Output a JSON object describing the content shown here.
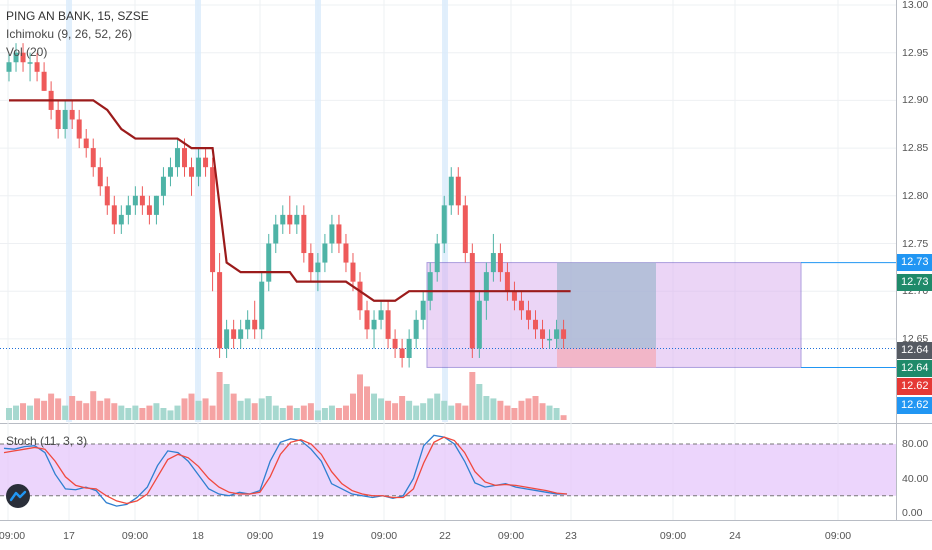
{
  "legend": {
    "title": "PING AN BANK, 15, SZSE",
    "ichimoku": "Ichimoku (9, 26, 52, 26)",
    "volume": "Vol (20)",
    "stoch": "Stoch (11, 3, 3)"
  },
  "colors": {
    "up": "#4eb3a6",
    "down": "#ee5a5a",
    "ichimoku_line": "#9b1b1b",
    "stoch_k": "#2f7fd0",
    "stoch_d": "#f0493e",
    "stoch_band": "#e5c7fb",
    "long_position_profit": "#dbb3f0",
    "long_position_stop": "#f3b0bf",
    "current_price_tag": "#555a62",
    "green_tag": "#1f8a6a",
    "red_tag": "#e53935",
    "blue_tag": "#2196f3"
  },
  "price_axis": {
    "ticks": [
      "13.00",
      "12.95",
      "12.90",
      "12.85",
      "12.80",
      "12.75",
      "12.70",
      "12.65"
    ],
    "tags": [
      "12.73",
      "12.73",
      "12.64",
      "12.64",
      "12.62",
      "12.62"
    ]
  },
  "stoch_axis": {
    "ticks": [
      "80.00",
      "40.00",
      "0.00"
    ]
  },
  "time_axis": {
    "labels": [
      "09:00",
      "17",
      "09:00",
      "18",
      "09:00",
      "19",
      "09:00",
      "22",
      "09:00",
      "23",
      "09:00",
      "24",
      "09:00"
    ]
  },
  "chart_data": [
    {
      "type": "candlestick",
      "title": "PING AN BANK, 15, SZSE",
      "ylim": [
        12.61,
        13.0
      ],
      "grid": true,
      "ohlc": [
        [
          12.93,
          12.95,
          12.92,
          12.94
        ],
        [
          12.94,
          12.96,
          12.93,
          12.95
        ],
        [
          12.95,
          12.96,
          12.93,
          12.94
        ],
        [
          12.94,
          12.95,
          12.92,
          12.94
        ],
        [
          12.94,
          12.95,
          12.92,
          12.93
        ],
        [
          12.93,
          12.94,
          12.91,
          12.91
        ],
        [
          12.91,
          12.92,
          12.88,
          12.89
        ],
        [
          12.89,
          12.9,
          12.86,
          12.87
        ],
        [
          12.87,
          12.9,
          12.86,
          12.89
        ],
        [
          12.89,
          12.9,
          12.87,
          12.88
        ],
        [
          12.88,
          12.89,
          12.85,
          12.86
        ],
        [
          12.86,
          12.87,
          12.84,
          12.85
        ],
        [
          12.85,
          12.86,
          12.82,
          12.83
        ],
        [
          12.83,
          12.84,
          12.8,
          12.81
        ],
        [
          12.81,
          12.82,
          12.78,
          12.79
        ],
        [
          12.79,
          12.8,
          12.76,
          12.77
        ],
        [
          12.77,
          12.79,
          12.76,
          12.78
        ],
        [
          12.78,
          12.8,
          12.77,
          12.79
        ],
        [
          12.79,
          12.81,
          12.78,
          12.8
        ],
        [
          12.8,
          12.81,
          12.78,
          12.79
        ],
        [
          12.79,
          12.8,
          12.77,
          12.78
        ],
        [
          12.78,
          12.8,
          12.77,
          12.8
        ],
        [
          12.8,
          12.83,
          12.79,
          12.82
        ],
        [
          12.82,
          12.84,
          12.81,
          12.83
        ],
        [
          12.83,
          12.86,
          12.82,
          12.85
        ],
        [
          12.85,
          12.86,
          12.82,
          12.83
        ],
        [
          12.83,
          12.84,
          12.8,
          12.82
        ],
        [
          12.82,
          12.85,
          12.81,
          12.84
        ],
        [
          12.84,
          12.85,
          12.82,
          12.83
        ],
        [
          12.83,
          12.84,
          12.7,
          12.72
        ],
        [
          12.72,
          12.74,
          12.63,
          12.64
        ],
        [
          12.64,
          12.67,
          12.63,
          12.66
        ],
        [
          12.66,
          12.67,
          12.64,
          12.65
        ],
        [
          12.65,
          12.67,
          12.64,
          12.66
        ],
        [
          12.66,
          12.68,
          12.65,
          12.67
        ],
        [
          12.67,
          12.69,
          12.65,
          12.66
        ],
        [
          12.66,
          12.72,
          12.65,
          12.71
        ],
        [
          12.71,
          12.76,
          12.7,
          12.75
        ],
        [
          12.75,
          12.78,
          12.74,
          12.77
        ],
        [
          12.77,
          12.79,
          12.76,
          12.78
        ],
        [
          12.78,
          12.8,
          12.76,
          12.77
        ],
        [
          12.77,
          12.79,
          12.76,
          12.78
        ],
        [
          12.78,
          12.79,
          12.73,
          12.74
        ],
        [
          12.74,
          12.75,
          12.71,
          12.72
        ],
        [
          12.72,
          12.74,
          12.7,
          12.73
        ],
        [
          12.73,
          12.76,
          12.72,
          12.75
        ],
        [
          12.75,
          12.78,
          12.74,
          12.77
        ],
        [
          12.77,
          12.78,
          12.74,
          12.75
        ],
        [
          12.75,
          12.76,
          12.72,
          12.73
        ],
        [
          12.73,
          12.74,
          12.7,
          12.71
        ],
        [
          12.71,
          12.72,
          12.67,
          12.68
        ],
        [
          12.68,
          12.69,
          12.65,
          12.66
        ],
        [
          12.66,
          12.68,
          12.64,
          12.67
        ],
        [
          12.67,
          12.69,
          12.66,
          12.68
        ],
        [
          12.68,
          12.69,
          12.64,
          12.65
        ],
        [
          12.65,
          12.66,
          12.63,
          12.64
        ],
        [
          12.64,
          12.65,
          12.62,
          12.63
        ],
        [
          12.63,
          12.66,
          12.62,
          12.65
        ],
        [
          12.65,
          12.68,
          12.64,
          12.67
        ],
        [
          12.67,
          12.7,
          12.66,
          12.69
        ],
        [
          12.69,
          12.73,
          12.68,
          12.72
        ],
        [
          12.72,
          12.76,
          12.71,
          12.75
        ],
        [
          12.75,
          12.8,
          12.74,
          12.79
        ],
        [
          12.79,
          12.83,
          12.78,
          12.82
        ],
        [
          12.82,
          12.83,
          12.78,
          12.79
        ],
        [
          12.79,
          12.8,
          12.73,
          12.74
        ],
        [
          12.74,
          12.75,
          12.63,
          12.64
        ],
        [
          12.64,
          12.7,
          12.63,
          12.69
        ],
        [
          12.69,
          12.73,
          12.67,
          12.72
        ],
        [
          12.72,
          12.76,
          12.71,
          12.74
        ],
        [
          12.74,
          12.75,
          12.71,
          12.72
        ],
        [
          12.72,
          12.73,
          12.69,
          12.7
        ],
        [
          12.7,
          12.71,
          12.68,
          12.69
        ],
        [
          12.69,
          12.7,
          12.67,
          12.68
        ],
        [
          12.68,
          12.69,
          12.66,
          12.67
        ],
        [
          12.67,
          12.68,
          12.65,
          12.66
        ],
        [
          12.66,
          12.67,
          12.64,
          12.65
        ],
        [
          12.65,
          12.66,
          12.64,
          12.65
        ],
        [
          12.65,
          12.67,
          12.64,
          12.66
        ],
        [
          12.66,
          12.67,
          12.64,
          12.65
        ]
      ],
      "volume_relative": [
        0.25,
        0.3,
        0.35,
        0.3,
        0.45,
        0.4,
        0.55,
        0.45,
        0.3,
        0.5,
        0.4,
        0.35,
        0.6,
        0.4,
        0.45,
        0.35,
        0.3,
        0.25,
        0.3,
        0.25,
        0.3,
        0.35,
        0.25,
        0.2,
        0.3,
        0.45,
        0.55,
        0.4,
        0.45,
        0.3,
        1.0,
        0.75,
        0.55,
        0.4,
        0.45,
        0.35,
        0.45,
        0.5,
        0.3,
        0.25,
        0.3,
        0.25,
        0.3,
        0.35,
        0.2,
        0.25,
        0.3,
        0.25,
        0.3,
        0.55,
        0.95,
        0.7,
        0.55,
        0.45,
        0.4,
        0.35,
        0.5,
        0.4,
        0.3,
        0.35,
        0.45,
        0.55,
        0.4,
        0.3,
        0.35,
        0.3,
        1.0,
        0.75,
        0.5,
        0.45,
        0.4,
        0.3,
        0.25,
        0.4,
        0.45,
        0.5,
        0.35,
        0.3,
        0.25,
        0.1
      ],
      "ichimoku_base_line": [
        [
          0,
          12.9
        ],
        [
          12,
          12.9
        ],
        [
          14,
          12.89
        ],
        [
          16,
          12.87
        ],
        [
          18,
          12.86
        ],
        [
          24,
          12.86
        ],
        [
          26,
          12.85
        ],
        [
          29,
          12.85
        ],
        [
          31,
          12.73
        ],
        [
          33,
          12.72
        ],
        [
          40,
          12.72
        ],
        [
          41,
          12.71
        ],
        [
          48,
          12.71
        ],
        [
          50,
          12.7
        ],
        [
          52,
          12.69
        ],
        [
          55,
          12.69
        ],
        [
          57,
          12.7
        ],
        [
          66,
          12.7
        ],
        [
          80,
          12.7
        ]
      ],
      "long_position": {
        "entry": 12.64,
        "target": 12.73,
        "stop": 12.64,
        "start_bar": 63,
        "end_bar": 118
      }
    },
    {
      "type": "line",
      "title": "Stoch (11, 3, 3)",
      "ylim": [
        0,
        100
      ],
      "bands": [
        20,
        80
      ],
      "series": [
        {
          "name": "%K",
          "values": [
            75,
            74,
            77,
            78,
            70,
            45,
            28,
            27,
            30,
            26,
            12,
            8,
            10,
            18,
            30,
            55,
            72,
            70,
            60,
            44,
            28,
            22,
            20,
            24,
            22,
            26,
            60,
            82,
            86,
            84,
            74,
            60,
            34,
            28,
            22,
            20,
            18,
            20,
            17,
            20,
            40,
            78,
            90,
            88,
            80,
            60,
            35,
            30,
            32,
            34,
            30,
            28,
            26,
            24,
            22,
            22
          ]
        },
        {
          "name": "%D",
          "values": [
            70,
            72,
            74,
            76,
            74,
            60,
            42,
            32,
            29,
            28,
            20,
            14,
            11,
            14,
            22,
            42,
            62,
            68,
            64,
            54,
            40,
            30,
            24,
            22,
            22,
            24,
            42,
            68,
            82,
            85,
            80,
            68,
            48,
            34,
            26,
            22,
            20,
            20,
            18,
            18,
            28,
            58,
            82,
            88,
            84,
            70,
            48,
            36,
            32,
            33,
            32,
            30,
            28,
            26,
            23,
            22
          ]
        }
      ]
    }
  ]
}
